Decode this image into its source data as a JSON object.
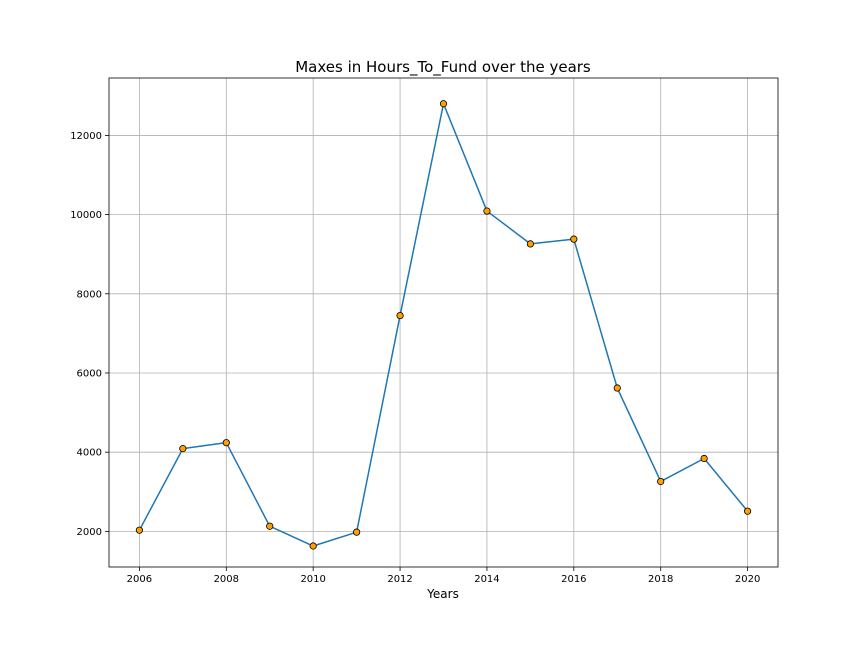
{
  "chart_data": {
    "type": "line",
    "title": "Maxes in Hours_To_Fund over the years",
    "xlabel": "Years",
    "ylabel": "",
    "x": [
      2006,
      2007,
      2008,
      2009,
      2010,
      2011,
      2012,
      2013,
      2014,
      2015,
      2016,
      2017,
      2018,
      2019,
      2020
    ],
    "series": [
      {
        "values": [
          2030,
          4090,
          4240,
          2130,
          1630,
          1980,
          7450,
          12800,
          10090,
          9260,
          9380,
          5620,
          3260,
          3840,
          2510
        ]
      }
    ],
    "xlim": [
      2005.3,
      2020.7
    ],
    "ylim": [
      1100,
      13450
    ],
    "xticks": [
      2006,
      2008,
      2010,
      2012,
      2014,
      2016,
      2018,
      2020
    ],
    "yticks": [
      2000,
      4000,
      6000,
      8000,
      10000,
      12000
    ],
    "grid": true,
    "line_color": "#1f77b4",
    "marker_color": "#ff9f00",
    "marker_edge_color": "#000000"
  }
}
